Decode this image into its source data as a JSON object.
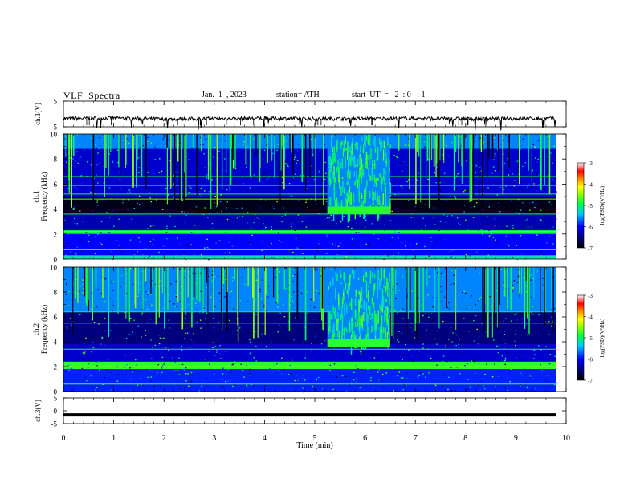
{
  "header": {
    "title": "VLF  Spectra",
    "date": "Jan.  1  , 2023",
    "station": "station= ATH",
    "start_ut": "start  UT  =   2  : 0   : 1"
  },
  "chart_data": [
    {
      "type": "line",
      "panel": "ch1-waveform",
      "ylabel": "ch.1(V)",
      "ylim": [
        -5,
        5
      ],
      "yticks": [
        "5",
        "-5"
      ],
      "xlim": [
        0,
        10
      ],
      "baseline_v": -1.8,
      "x": [
        0,
        1,
        2,
        3,
        4,
        5,
        6,
        7,
        8,
        9,
        9.8
      ],
      "y": [
        -1.8,
        -1.6,
        -2.0,
        -1.8,
        -1.7,
        -1.9,
        -1.8,
        -1.7,
        -1.9,
        -1.8,
        -1.8
      ],
      "color": "#000000"
    },
    {
      "type": "heatmap",
      "panel": "ch1-spectrogram",
      "ylabel": "ch.1\nFrequency (kHz)",
      "yticks": [
        "0",
        "2",
        "4",
        "6",
        "8",
        "10"
      ],
      "ylim": [
        0,
        10
      ],
      "xlim": [
        0,
        10
      ],
      "data_end_min": 9.8,
      "colorbar": {
        "label": "log(PSD)(V²/Hz)",
        "ticks": [
          "-3",
          "-4",
          "-5",
          "-6",
          "-7"
        ],
        "range": [
          -7,
          -3
        ]
      },
      "bands_khz": [
        {
          "from": 8.8,
          "to": 10,
          "level": -5.6
        },
        {
          "from": 5.0,
          "to": 8.8,
          "level": -6.2
        },
        {
          "from": 3.6,
          "to": 5.0,
          "level": -6.9
        },
        {
          "from": 2.3,
          "to": 3.6,
          "level": -6.3
        },
        {
          "from": 2.0,
          "to": 2.3,
          "level": -4.9
        },
        {
          "from": 0.3,
          "to": 2.0,
          "level": -6.0
        },
        {
          "from": 0.0,
          "to": 0.3,
          "level": -5.2
        }
      ],
      "lines_khz": [
        6.6,
        5.9,
        5.2,
        4.8,
        3.6,
        2.2,
        0.8
      ],
      "event": {
        "start_min": 5.25,
        "end_min": 6.5,
        "level": -5.0,
        "tone_khz": 3.9,
        "tone_level": -4.8
      }
    },
    {
      "type": "heatmap",
      "panel": "ch2-spectrogram",
      "ylabel": "ch.2\nFrequency (kHz)",
      "yticks": [
        "0",
        "2",
        "4",
        "6",
        "8",
        "10"
      ],
      "ylim": [
        0,
        10
      ],
      "xlim": [
        0,
        10
      ],
      "data_end_min": 9.8,
      "colorbar": {
        "label": "log(PSD)(V²/Hz)",
        "ticks": [
          "-3",
          "-4",
          "-5",
          "-6",
          "-7"
        ],
        "range": [
          -7,
          -3
        ]
      },
      "bands_khz": [
        {
          "from": 6.4,
          "to": 10,
          "level": -5.6
        },
        {
          "from": 3.8,
          "to": 6.4,
          "level": -6.5
        },
        {
          "from": 2.4,
          "to": 3.8,
          "level": -6.2
        },
        {
          "from": 1.8,
          "to": 2.4,
          "level": -4.8
        },
        {
          "from": 0.0,
          "to": 1.8,
          "level": -5.9
        }
      ],
      "lines_khz": [
        6.4,
        5.5,
        3.4,
        2.0,
        1.0,
        0.6
      ],
      "event": {
        "start_min": 5.25,
        "end_min": 6.5,
        "level": -5.0,
        "tone_khz": 3.9,
        "tone_level": -4.8
      }
    },
    {
      "type": "line",
      "panel": "ch3-waveform",
      "ylabel": "ch.3(V)",
      "xlabel": "Time  (min)",
      "ylim": [
        -5,
        5
      ],
      "yticks": [
        "5",
        "0",
        "-5"
      ],
      "xticks": [
        "0",
        "1",
        "2",
        "3",
        "4",
        "5",
        "6",
        "7",
        "8",
        "9",
        "10"
      ],
      "xlim": [
        0,
        10
      ],
      "x": [
        0,
        9.8
      ],
      "y": [
        -1.6,
        -1.6
      ],
      "color": "#000000"
    }
  ]
}
